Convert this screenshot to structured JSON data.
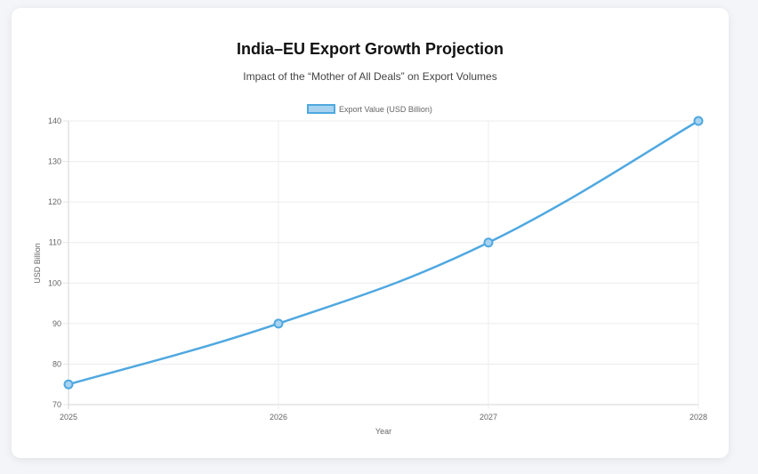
{
  "chart_data": {
    "type": "line",
    "title": "India–EU Export Growth Projection",
    "subtitle": "Impact of the “Mother of All Deals” on Export Volumes",
    "categories": [
      "2025",
      "2026",
      "2027",
      "2028"
    ],
    "series": [
      {
        "name": "Export Value (USD Billion)",
        "values": [
          75,
          90,
          110,
          140
        ],
        "color": "#4fa8e0",
        "fill": "#a8d3f0"
      }
    ],
    "xlabel": "Year",
    "ylabel": "USD Billion",
    "ylim": [
      70,
      140
    ],
    "yticks": [
      70,
      80,
      90,
      100,
      110,
      120,
      130,
      140
    ],
    "grid": true,
    "legend_position": "top"
  }
}
